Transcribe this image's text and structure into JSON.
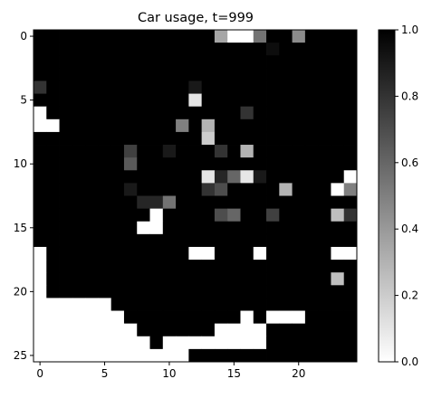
{
  "chart_data": {
    "type": "heatmap",
    "title": "Car usage, t=999",
    "xlabel": "",
    "ylabel": "",
    "cmap": "gray_r",
    "xlim": [
      -0.5,
      24.5
    ],
    "ylim": [
      -0.5,
      25.5
    ],
    "x_ticks": [
      0,
      5,
      10,
      15,
      20
    ],
    "y_ticks": [
      0,
      5,
      10,
      15,
      20,
      25
    ],
    "colorbar": {
      "min": 0.0,
      "max": 1.0,
      "ticks": [
        0.0,
        0.2,
        0.4,
        0.6,
        0.8,
        1.0
      ],
      "tick_labels": [
        "0.0",
        "0.2",
        "0.4",
        "0.6",
        "0.8",
        "1.0"
      ]
    },
    "values": [
      [
        1,
        1,
        1,
        1,
        1,
        1,
        1,
        1,
        1,
        1,
        1,
        1,
        1,
        1,
        0.35,
        0,
        0,
        0.55,
        1,
        1,
        0.45,
        1,
        1,
        1,
        1
      ],
      [
        1,
        1,
        1,
        1,
        1,
        1,
        1,
        1,
        1,
        1,
        1,
        1,
        1,
        1,
        1,
        1,
        1,
        1,
        0.95,
        1,
        1,
        1,
        1,
        1,
        1
      ],
      [
        1,
        1,
        1,
        1,
        1,
        1,
        1,
        1,
        1,
        1,
        1,
        1,
        1,
        1,
        1,
        1,
        1,
        1,
        1,
        1,
        1,
        1,
        1,
        1,
        1
      ],
      [
        1,
        1,
        1,
        1,
        1,
        1,
        1,
        1,
        1,
        1,
        1,
        1,
        1,
        1,
        1,
        1,
        1,
        1,
        1,
        1,
        1,
        1,
        1,
        1,
        1
      ],
      [
        0.8,
        1,
        1,
        1,
        1,
        1,
        1,
        1,
        1,
        1,
        1,
        1,
        0.9,
        1,
        1,
        1,
        1,
        1,
        1,
        1,
        1,
        1,
        1,
        1,
        1
      ],
      [
        1,
        1,
        1,
        1,
        1,
        1,
        1,
        1,
        1,
        1,
        1,
        1,
        0.1,
        1,
        1,
        1,
        1,
        1,
        1,
        1,
        1,
        1,
        1,
        1,
        1
      ],
      [
        0,
        1,
        1,
        1,
        1,
        1,
        1,
        1,
        1,
        1,
        1,
        1,
        1,
        1,
        1,
        1,
        0.8,
        1,
        1,
        1,
        1,
        1,
        1,
        1,
        1
      ],
      [
        0,
        0,
        1,
        1,
        1,
        1,
        1,
        1,
        1,
        1,
        1,
        0.5,
        1,
        0.3,
        1,
        1,
        1,
        1,
        1,
        1,
        1,
        1,
        1,
        1,
        1
      ],
      [
        1,
        1,
        1,
        1,
        1,
        1,
        1,
        1,
        1,
        1,
        1,
        1,
        1,
        0.2,
        1,
        1,
        1,
        1,
        1,
        1,
        1,
        1,
        1,
        1,
        1
      ],
      [
        1,
        1,
        1,
        1,
        1,
        1,
        1,
        0.75,
        1,
        1,
        0.9,
        1,
        1,
        1,
        0.8,
        1,
        0.3,
        1,
        1,
        1,
        1,
        1,
        1,
        1,
        1
      ],
      [
        1,
        1,
        1,
        1,
        1,
        1,
        1,
        0.65,
        1,
        1,
        1,
        1,
        1,
        1,
        1,
        1,
        1,
        1,
        1,
        1,
        1,
        1,
        1,
        1,
        1
      ],
      [
        1,
        1,
        1,
        1,
        1,
        1,
        1,
        1,
        1,
        1,
        1,
        1,
        1,
        0.1,
        0.85,
        0.6,
        0.1,
        0.9,
        1,
        1,
        1,
        1,
        1,
        1,
        0
      ],
      [
        1,
        1,
        1,
        1,
        1,
        1,
        1,
        0.9,
        1,
        1,
        1,
        1,
        1,
        0.8,
        0.7,
        1,
        1,
        1,
        1,
        0.3,
        1,
        1,
        1,
        0,
        0.5
      ],
      [
        1,
        1,
        1,
        1,
        1,
        1,
        1,
        1,
        0.85,
        0.85,
        0.55,
        1,
        1,
        1,
        1,
        1,
        1,
        1,
        1,
        1,
        1,
        1,
        1,
        1,
        1
      ],
      [
        1,
        1,
        1,
        1,
        1,
        1,
        1,
        1,
        1,
        0,
        1,
        1,
        1,
        1,
        0.7,
        0.6,
        1,
        1,
        0.75,
        1,
        1,
        1,
        1,
        0.25,
        0.8
      ],
      [
        1,
        1,
        1,
        1,
        1,
        1,
        1,
        1,
        0,
        0,
        1,
        1,
        1,
        1,
        1,
        1,
        1,
        1,
        1,
        1,
        1,
        1,
        1,
        1,
        1
      ],
      [
        1,
        1,
        1,
        1,
        1,
        1,
        1,
        1,
        1,
        1,
        1,
        1,
        1,
        1,
        1,
        1,
        1,
        1,
        1,
        1,
        1,
        1,
        1,
        1,
        1
      ],
      [
        0,
        1,
        1,
        1,
        1,
        1,
        1,
        1,
        1,
        1,
        1,
        1,
        0,
        0,
        1,
        1,
        1,
        0,
        1,
        1,
        1,
        1,
        1,
        0,
        0
      ],
      [
        0,
        1,
        1,
        1,
        1,
        1,
        1,
        1,
        1,
        1,
        1,
        1,
        1,
        1,
        1,
        1,
        1,
        1,
        1,
        1,
        1,
        1,
        1,
        1,
        1
      ],
      [
        0,
        1,
        1,
        1,
        1,
        1,
        1,
        1,
        1,
        1,
        1,
        1,
        1,
        1,
        1,
        1,
        1,
        1,
        1,
        1,
        1,
        1,
        1,
        0.25,
        1
      ],
      [
        0,
        1,
        1,
        1,
        1,
        1,
        1,
        1,
        1,
        1,
        1,
        1,
        1,
        1,
        1,
        1,
        1,
        1,
        1,
        1,
        1,
        1,
        1,
        1,
        1
      ],
      [
        0,
        0,
        0,
        0,
        0,
        0,
        1,
        1,
        1,
        1,
        1,
        1,
        1,
        1,
        1,
        1,
        1,
        1,
        1,
        1,
        1,
        1,
        1,
        1,
        1
      ],
      [
        0,
        0,
        0,
        0,
        0,
        0,
        0,
        1,
        1,
        1,
        1,
        1,
        1,
        1,
        1,
        1,
        0,
        1,
        0,
        0,
        0,
        1,
        1,
        1,
        1
      ],
      [
        0,
        0,
        0,
        0,
        0,
        0,
        0,
        0,
        1,
        1,
        1,
        1,
        1,
        1,
        0,
        0,
        0,
        0,
        1,
        1,
        1,
        1,
        1,
        1,
        1
      ],
      [
        0,
        0,
        0,
        0,
        0,
        0,
        0,
        0,
        0,
        1,
        0,
        0,
        0,
        0,
        0,
        0,
        0,
        0,
        1,
        1,
        1,
        1,
        1,
        1,
        1
      ],
      [
        0,
        0,
        0,
        0,
        0,
        0,
        0,
        0,
        0,
        0,
        0,
        0,
        1,
        1,
        1,
        1,
        1,
        1,
        1,
        1,
        1,
        1,
        1,
        1,
        1
      ]
    ]
  }
}
